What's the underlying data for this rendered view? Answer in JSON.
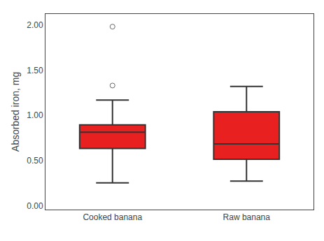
{
  "chart_data": {
    "type": "box",
    "categories": [
      "Cooked banana",
      "Raw banana"
    ],
    "q1": [
      0.635,
      0.515
    ],
    "median": [
      0.815,
      0.685
    ],
    "q3": [
      0.895,
      1.04
    ],
    "whisker_low": [
      0.255,
      0.275
    ],
    "whisker_high": [
      1.17,
      1.32
    ],
    "outliers": [
      [
        1.33,
        1.98
      ],
      []
    ],
    "ylabel": "Absorbed iron, mg",
    "ylim": [
      -0.04,
      2.12
    ],
    "yticks": [
      {
        "value": 0,
        "label": "0.00"
      },
      {
        "value": 0.5,
        "label": "0.50"
      },
      {
        "value": 1,
        "label": "1.00"
      },
      {
        "value": 1.5,
        "label": "1.50"
      },
      {
        "value": 2,
        "label": "2.00"
      }
    ],
    "color": "#e82020",
    "marker": "circle-open",
    "grid": false
  }
}
